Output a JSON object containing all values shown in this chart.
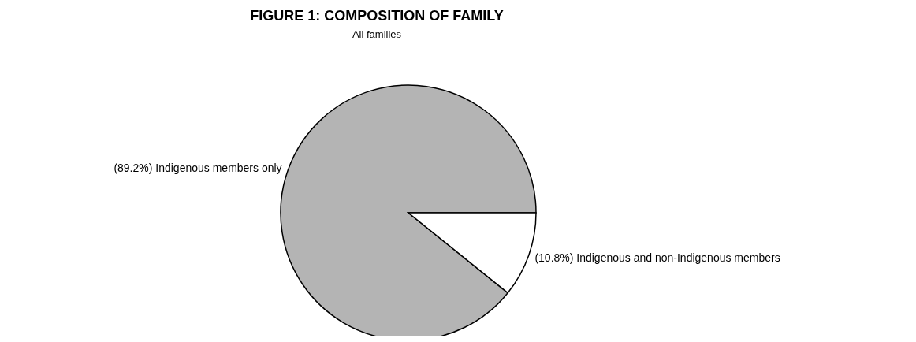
{
  "chart_data": {
    "type": "pie",
    "title": "FIGURE 1: COMPOSITION OF FAMILY",
    "subtitle": "All families",
    "categories": [
      "Indigenous members only",
      "Indigenous and non-Indigenous members"
    ],
    "values": [
      89.2,
      10.8
    ],
    "colors": [
      "#b4b4b4",
      "#ffffff"
    ],
    "value_labels": [
      "(89.2%)",
      "(10.8%)"
    ]
  }
}
